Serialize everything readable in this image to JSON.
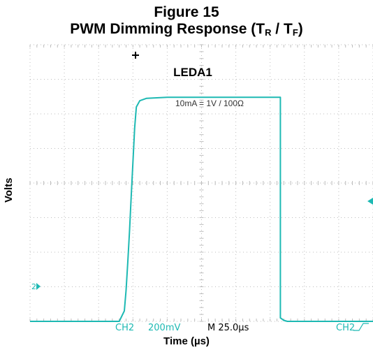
{
  "title": "Figure 15",
  "subtitle": {
    "prefix": "PWM Dimming Response (T",
    "sub1": "R",
    "middle": " / T",
    "sub2": "F",
    "suffix": ")"
  },
  "scope": {
    "channel_label": "LEDA1",
    "scale_annotation": "10mA = 1V / 100Ω",
    "ch_label": "CH2",
    "volts_per_div": "200mV",
    "timebase": "M 25.0µs",
    "trigger": "CH2",
    "ground_marker": "2",
    "trace_color": "#1db9b3"
  },
  "chart_data": {
    "type": "line",
    "xlabel": "Time (µs)",
    "ylabel": "Volts",
    "x_unit": "divisions",
    "y_unit": "divisions",
    "xlim": [
      0,
      10
    ],
    "ylim": [
      0,
      8
    ],
    "series": [
      {
        "x": [
          0,
          2.6,
          2.75,
          2.8,
          2.85,
          2.9,
          2.95,
          3.0,
          3.05,
          3.1,
          3.2,
          3.4,
          4.0,
          5.0,
          6.0,
          6.5,
          7.3,
          7.3,
          7.4,
          7.5,
          8.0,
          9.0,
          10
        ],
        "y": [
          0,
          0,
          0.3,
          0.9,
          1.7,
          2.6,
          3.6,
          4.6,
          5.6,
          6.2,
          6.38,
          6.45,
          6.48,
          6.48,
          6.48,
          6.48,
          6.48,
          0.1,
          0.03,
          0.0,
          0.0,
          0.0,
          0.0
        ]
      }
    ]
  }
}
